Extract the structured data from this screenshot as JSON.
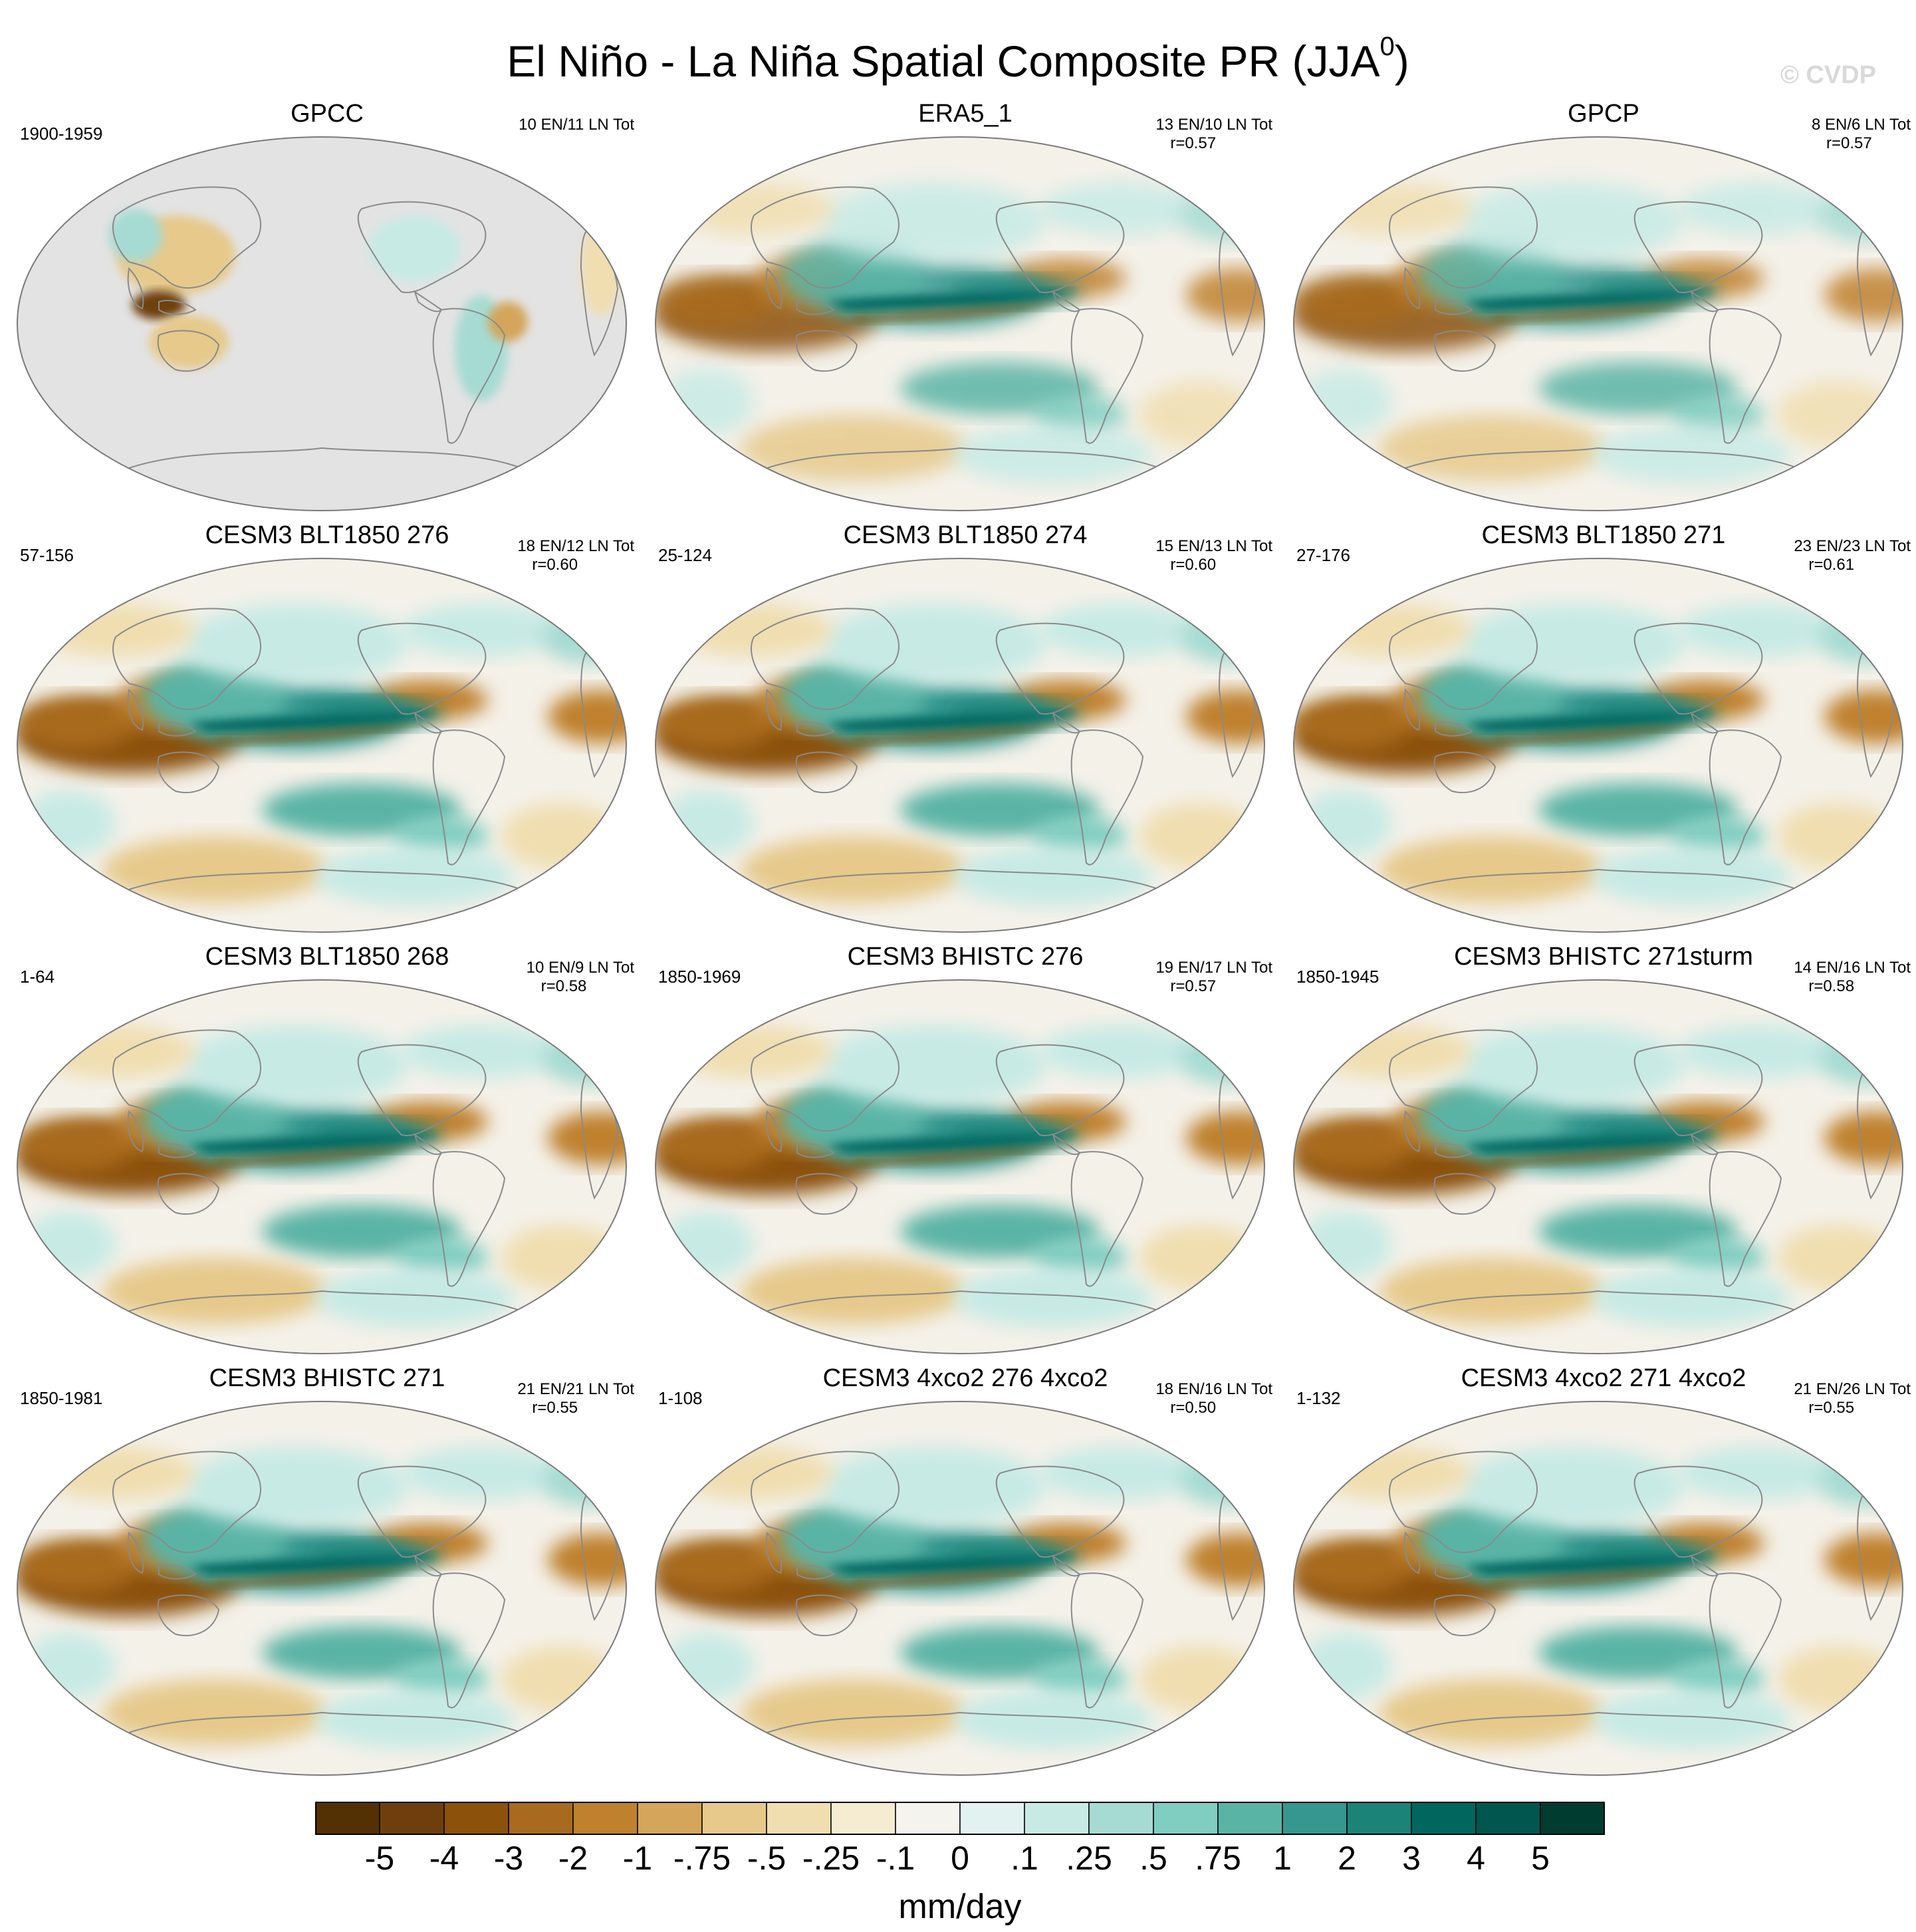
{
  "title": "El Niño - La Niña Spatial Composite PR (JJA",
  "title_sup": "0",
  "title_close": ")",
  "watermark": "© CVDP",
  "colors": {
    "land_outline": "#8a8a8a",
    "missing": "#e3e3e3",
    "ocean_base": "#f4f1e9"
  },
  "panels": [
    {
      "title": "GPCC",
      "years": "1900-1959",
      "stats": "10 EN/11 LN Tot",
      "corr": "",
      "kind": "gpcc"
    },
    {
      "title": "ERA5_1",
      "years": "",
      "stats": "13 EN/10 LN Tot",
      "corr": "r=0.57",
      "kind": "obs"
    },
    {
      "title": "GPCP",
      "years": "",
      "stats": "8 EN/6 LN Tot",
      "corr": "r=0.57",
      "kind": "obs"
    },
    {
      "title": "CESM3 BLT1850 276",
      "years": "57-156",
      "stats": "18 EN/12 LN Tot",
      "corr": "r=0.60",
      "kind": "model"
    },
    {
      "title": "CESM3 BLT1850 274",
      "years": "25-124",
      "stats": "15 EN/13 LN Tot",
      "corr": "r=0.60",
      "kind": "model"
    },
    {
      "title": "CESM3 BLT1850 271",
      "years": "27-176",
      "stats": "23 EN/23 LN Tot",
      "corr": "r=0.61",
      "kind": "model"
    },
    {
      "title": "CESM3 BLT1850 268",
      "years": "1-64",
      "stats": "10 EN/9 LN Tot",
      "corr": "r=0.58",
      "kind": "model"
    },
    {
      "title": "CESM3 BHISTC 276",
      "years": "1850-1969",
      "stats": "19 EN/17 LN Tot",
      "corr": "r=0.57",
      "kind": "model"
    },
    {
      "title": "CESM3 BHISTC 271sturm",
      "years": "1850-1945",
      "stats": "14 EN/16 LN Tot",
      "corr": "r=0.58",
      "kind": "model"
    },
    {
      "title": "CESM3 BHISTC 271",
      "years": "1850-1981",
      "stats": "21 EN/21 LN Tot",
      "corr": "r=0.55",
      "kind": "model"
    },
    {
      "title": "CESM3 4xco2 276 4xco2",
      "years": "1-108",
      "stats": "18 EN/16 LN Tot",
      "corr": "r=0.50",
      "kind": "model"
    },
    {
      "title": "CESM3 4xco2 271 4xco2",
      "years": "1-132",
      "stats": "21 EN/26 LN Tot",
      "corr": "r=0.55",
      "kind": "model"
    }
  ],
  "colorbar": {
    "units": "mm/day",
    "colors": [
      "#543005",
      "#6e3f0c",
      "#8c510a",
      "#a86a1e",
      "#bf812d",
      "#d4a55a",
      "#e6c98b",
      "#f0deb0",
      "#f6ecd2",
      "#f5f3ee",
      "#e2f2f0",
      "#c7eae5",
      "#a6dbd3",
      "#80cdc1",
      "#5ab4a6",
      "#35978f",
      "#1c8379",
      "#01665e",
      "#01564f",
      "#003c30"
    ],
    "labels": [
      "-5",
      "-4",
      "-3",
      "-2",
      "-1",
      "-.75",
      "-.5",
      "-.25",
      "-.1",
      "0",
      ".1",
      ".25",
      ".5",
      ".75",
      "1",
      "2",
      "3",
      "4",
      "5"
    ]
  }
}
